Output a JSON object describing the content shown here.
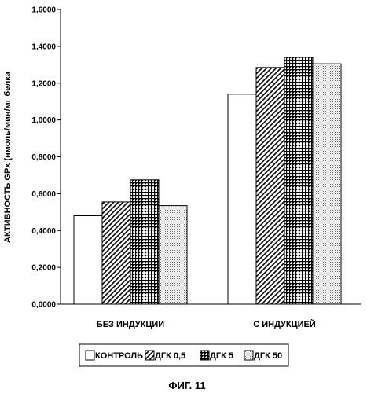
{
  "chart_data": {
    "type": "bar",
    "categories": [
      "БЕЗ ИНДУКЦИИ",
      "С ИНДУКЦИЕЙ"
    ],
    "series": [
      {
        "name": "КОНТРОЛЬ",
        "values": [
          0.48,
          1.14
        ],
        "pattern": "blank"
      },
      {
        "name": "ДГК 0,5",
        "values": [
          0.555,
          1.285
        ],
        "pattern": "diagonal"
      },
      {
        "name": "ДГК 5",
        "values": [
          0.675,
          1.34
        ],
        "pattern": "grid"
      },
      {
        "name": "ДГК 50",
        "values": [
          0.535,
          1.305
        ],
        "pattern": "dots"
      }
    ],
    "yticks": [
      "0,0000",
      "0,2000",
      "0,4000",
      "0,6000",
      "0,8000",
      "1,0000",
      "1,2000",
      "1,4000",
      "1,6000"
    ],
    "ylim": [
      0,
      1.6
    ],
    "ylabel": "АКТИВНОСТЬ GPx (нмоль/мин/мг белка",
    "xlabel": "",
    "legend_position": "bottom",
    "grid": false
  },
  "caption": "ФИГ. 11"
}
